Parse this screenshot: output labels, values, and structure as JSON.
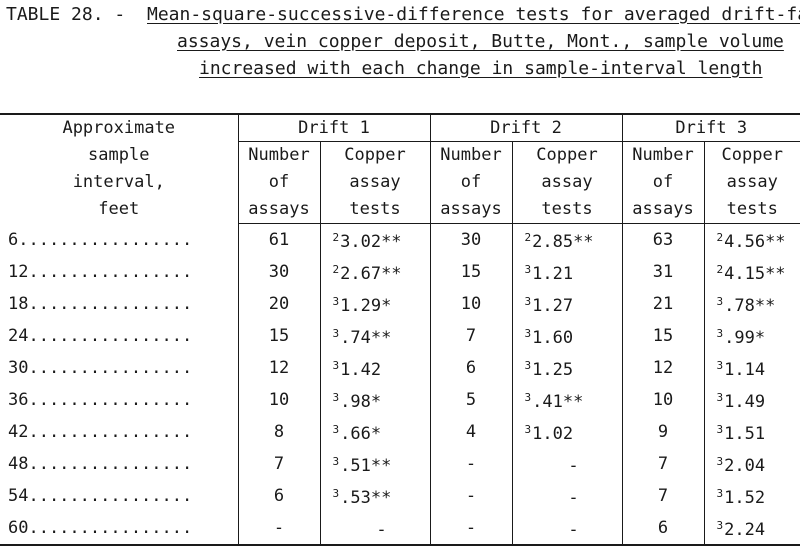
{
  "table_label": "TABLE 28. -",
  "caption_lines": [
    "Mean-square-successive-difference tests for averaged drift-face",
    "assays, vein copper deposit, Butte, Mont., sample volume",
    "increased with each change in sample-interval length"
  ],
  "headers": {
    "interval": [
      "Approximate",
      "sample",
      "interval,",
      "feet"
    ],
    "groups": [
      "Drift 1",
      "Drift 2",
      "Drift 3"
    ],
    "number_of_assays": [
      "Number",
      "of",
      "assays"
    ],
    "copper_assay_tests": [
      "Copper",
      "assay",
      "tests"
    ]
  },
  "rows": [
    {
      "interval": "6.................",
      "d1_n": "61",
      "d1_sup": "2",
      "d1_v": "3.02**",
      "d2_n": "30",
      "d2_sup": "2",
      "d2_v": "2.85**",
      "d3_n": "63",
      "d3_sup": "2",
      "d3_v": "4.56**"
    },
    {
      "interval": "12................",
      "d1_n": "30",
      "d1_sup": "2",
      "d1_v": "2.67**",
      "d2_n": "15",
      "d2_sup": "3",
      "d2_v": "1.21",
      "d3_n": "31",
      "d3_sup": "2",
      "d3_v": "4.15**"
    },
    {
      "interval": "18................",
      "d1_n": "20",
      "d1_sup": "3",
      "d1_v": "1.29*",
      "d2_n": "10",
      "d2_sup": "3",
      "d2_v": "1.27",
      "d3_n": "21",
      "d3_sup": "3",
      "d3_v": ".78**"
    },
    {
      "interval": "24................",
      "d1_n": "15",
      "d1_sup": "3",
      "d1_v": ".74**",
      "d2_n": "7",
      "d2_sup": "3",
      "d2_v": "1.60",
      "d3_n": "15",
      "d3_sup": "3",
      "d3_v": ".99*"
    },
    {
      "interval": "30................",
      "d1_n": "12",
      "d1_sup": "3",
      "d1_v": "1.42",
      "d2_n": "6",
      "d2_sup": "3",
      "d2_v": "1.25",
      "d3_n": "12",
      "d3_sup": "3",
      "d3_v": "1.14"
    },
    {
      "interval": "36................",
      "d1_n": "10",
      "d1_sup": "3",
      "d1_v": ".98*",
      "d2_n": "5",
      "d2_sup": "3",
      "d2_v": ".41**",
      "d3_n": "10",
      "d3_sup": "3",
      "d3_v": "1.49"
    },
    {
      "interval": "42................",
      "d1_n": "8",
      "d1_sup": "3",
      "d1_v": ".66*",
      "d2_n": "4",
      "d2_sup": "3",
      "d2_v": "1.02",
      "d3_n": "9",
      "d3_sup": "3",
      "d3_v": "1.51"
    },
    {
      "interval": "48................",
      "d1_n": "7",
      "d1_sup": "3",
      "d1_v": ".51**",
      "d2_n": "-",
      "d2_sup": "",
      "d2_v": "-",
      "d3_n": "7",
      "d3_sup": "3",
      "d3_v": "2.04"
    },
    {
      "interval": "54................",
      "d1_n": "6",
      "d1_sup": "3",
      "d1_v": ".53**",
      "d2_n": "-",
      "d2_sup": "",
      "d2_v": "-",
      "d3_n": "7",
      "d3_sup": "3",
      "d3_v": "1.52"
    },
    {
      "interval": "60................",
      "d1_n": "-",
      "d1_sup": "",
      "d1_v": "-",
      "d2_n": "-",
      "d2_sup": "",
      "d2_v": "-",
      "d3_n": "6",
      "d3_sup": "3",
      "d3_v": "2.24"
    }
  ]
}
